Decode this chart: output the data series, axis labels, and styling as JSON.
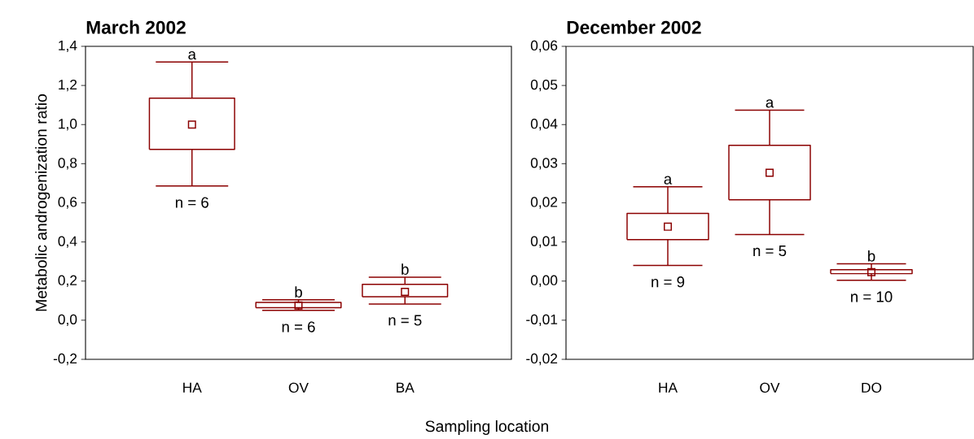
{
  "chart_data": [
    {
      "type": "box",
      "title": "March 2002",
      "ylabel": "Metabolic androgenization ratio",
      "xlabel": "Sampling location",
      "categories": [
        "HA",
        "OV",
        "BA"
      ],
      "color": "#8b0000",
      "marker": "square",
      "grid": false,
      "boxes": [
        {
          "low": 0.686,
          "q1": 0.873,
          "median": 1.0,
          "q3": 1.135,
          "high": 1.32
        },
        {
          "low": 0.05,
          "q1": 0.064,
          "median": 0.075,
          "q3": 0.091,
          "high": 0.104
        },
        {
          "low": 0.083,
          "q1": 0.12,
          "median": 0.145,
          "q3": 0.183,
          "high": 0.22
        }
      ],
      "ylim": [
        -0.2,
        1.4
      ],
      "yticks": [
        {
          "value": -0.2,
          "label": "-0,2"
        },
        {
          "value": 0,
          "label": "0,0"
        },
        {
          "value": 0.2,
          "label": "0,2"
        },
        {
          "value": 0.4,
          "label": "0,4"
        },
        {
          "value": 0.6,
          "label": "0,6"
        },
        {
          "value": 0.8,
          "label": "0,8"
        },
        {
          "value": 1.0,
          "label": "1,0"
        },
        {
          "value": 1.2,
          "label": "1,2"
        },
        {
          "value": 1.4,
          "label": "1,4"
        }
      ],
      "annotations": [
        "a",
        "n = 6",
        "b",
        "n = 6",
        "b",
        "n = 5"
      ]
    },
    {
      "type": "box",
      "title": "December 2002",
      "categories": [
        "HA",
        "OV",
        "DO"
      ],
      "color": "#8b0000",
      "marker": "square",
      "grid": false,
      "boxes": [
        {
          "low": 0.004,
          "q1": 0.0106,
          "median": 0.0139,
          "q3": 0.0173,
          "high": 0.0241
        },
        {
          "low": 0.0119,
          "q1": 0.0208,
          "median": 0.0277,
          "q3": 0.0347,
          "high": 0.0437
        },
        {
          "low": 0.0002,
          "q1": 0.0019,
          "median": 0.0023,
          "q3": 0.0029,
          "high": 0.0044
        }
      ],
      "ylim": [
        -0.02,
        0.06
      ],
      "yticks": [
        {
          "value": -0.02,
          "label": "-0,02"
        },
        {
          "value": -0.01,
          "label": "-0,01"
        },
        {
          "value": 0,
          "label": "0,00"
        },
        {
          "value": 0.01,
          "label": "0,01"
        },
        {
          "value": 0.02,
          "label": "0,02"
        },
        {
          "value": 0.03,
          "label": "0,03"
        },
        {
          "value": 0.04,
          "label": "0,04"
        },
        {
          "value": 0.05,
          "label": "0,05"
        },
        {
          "value": 0.06,
          "label": "0,06"
        }
      ],
      "annotations": [
        "a",
        "n = 9",
        "a",
        "n = 5",
        "b",
        "n = 10"
      ]
    }
  ]
}
